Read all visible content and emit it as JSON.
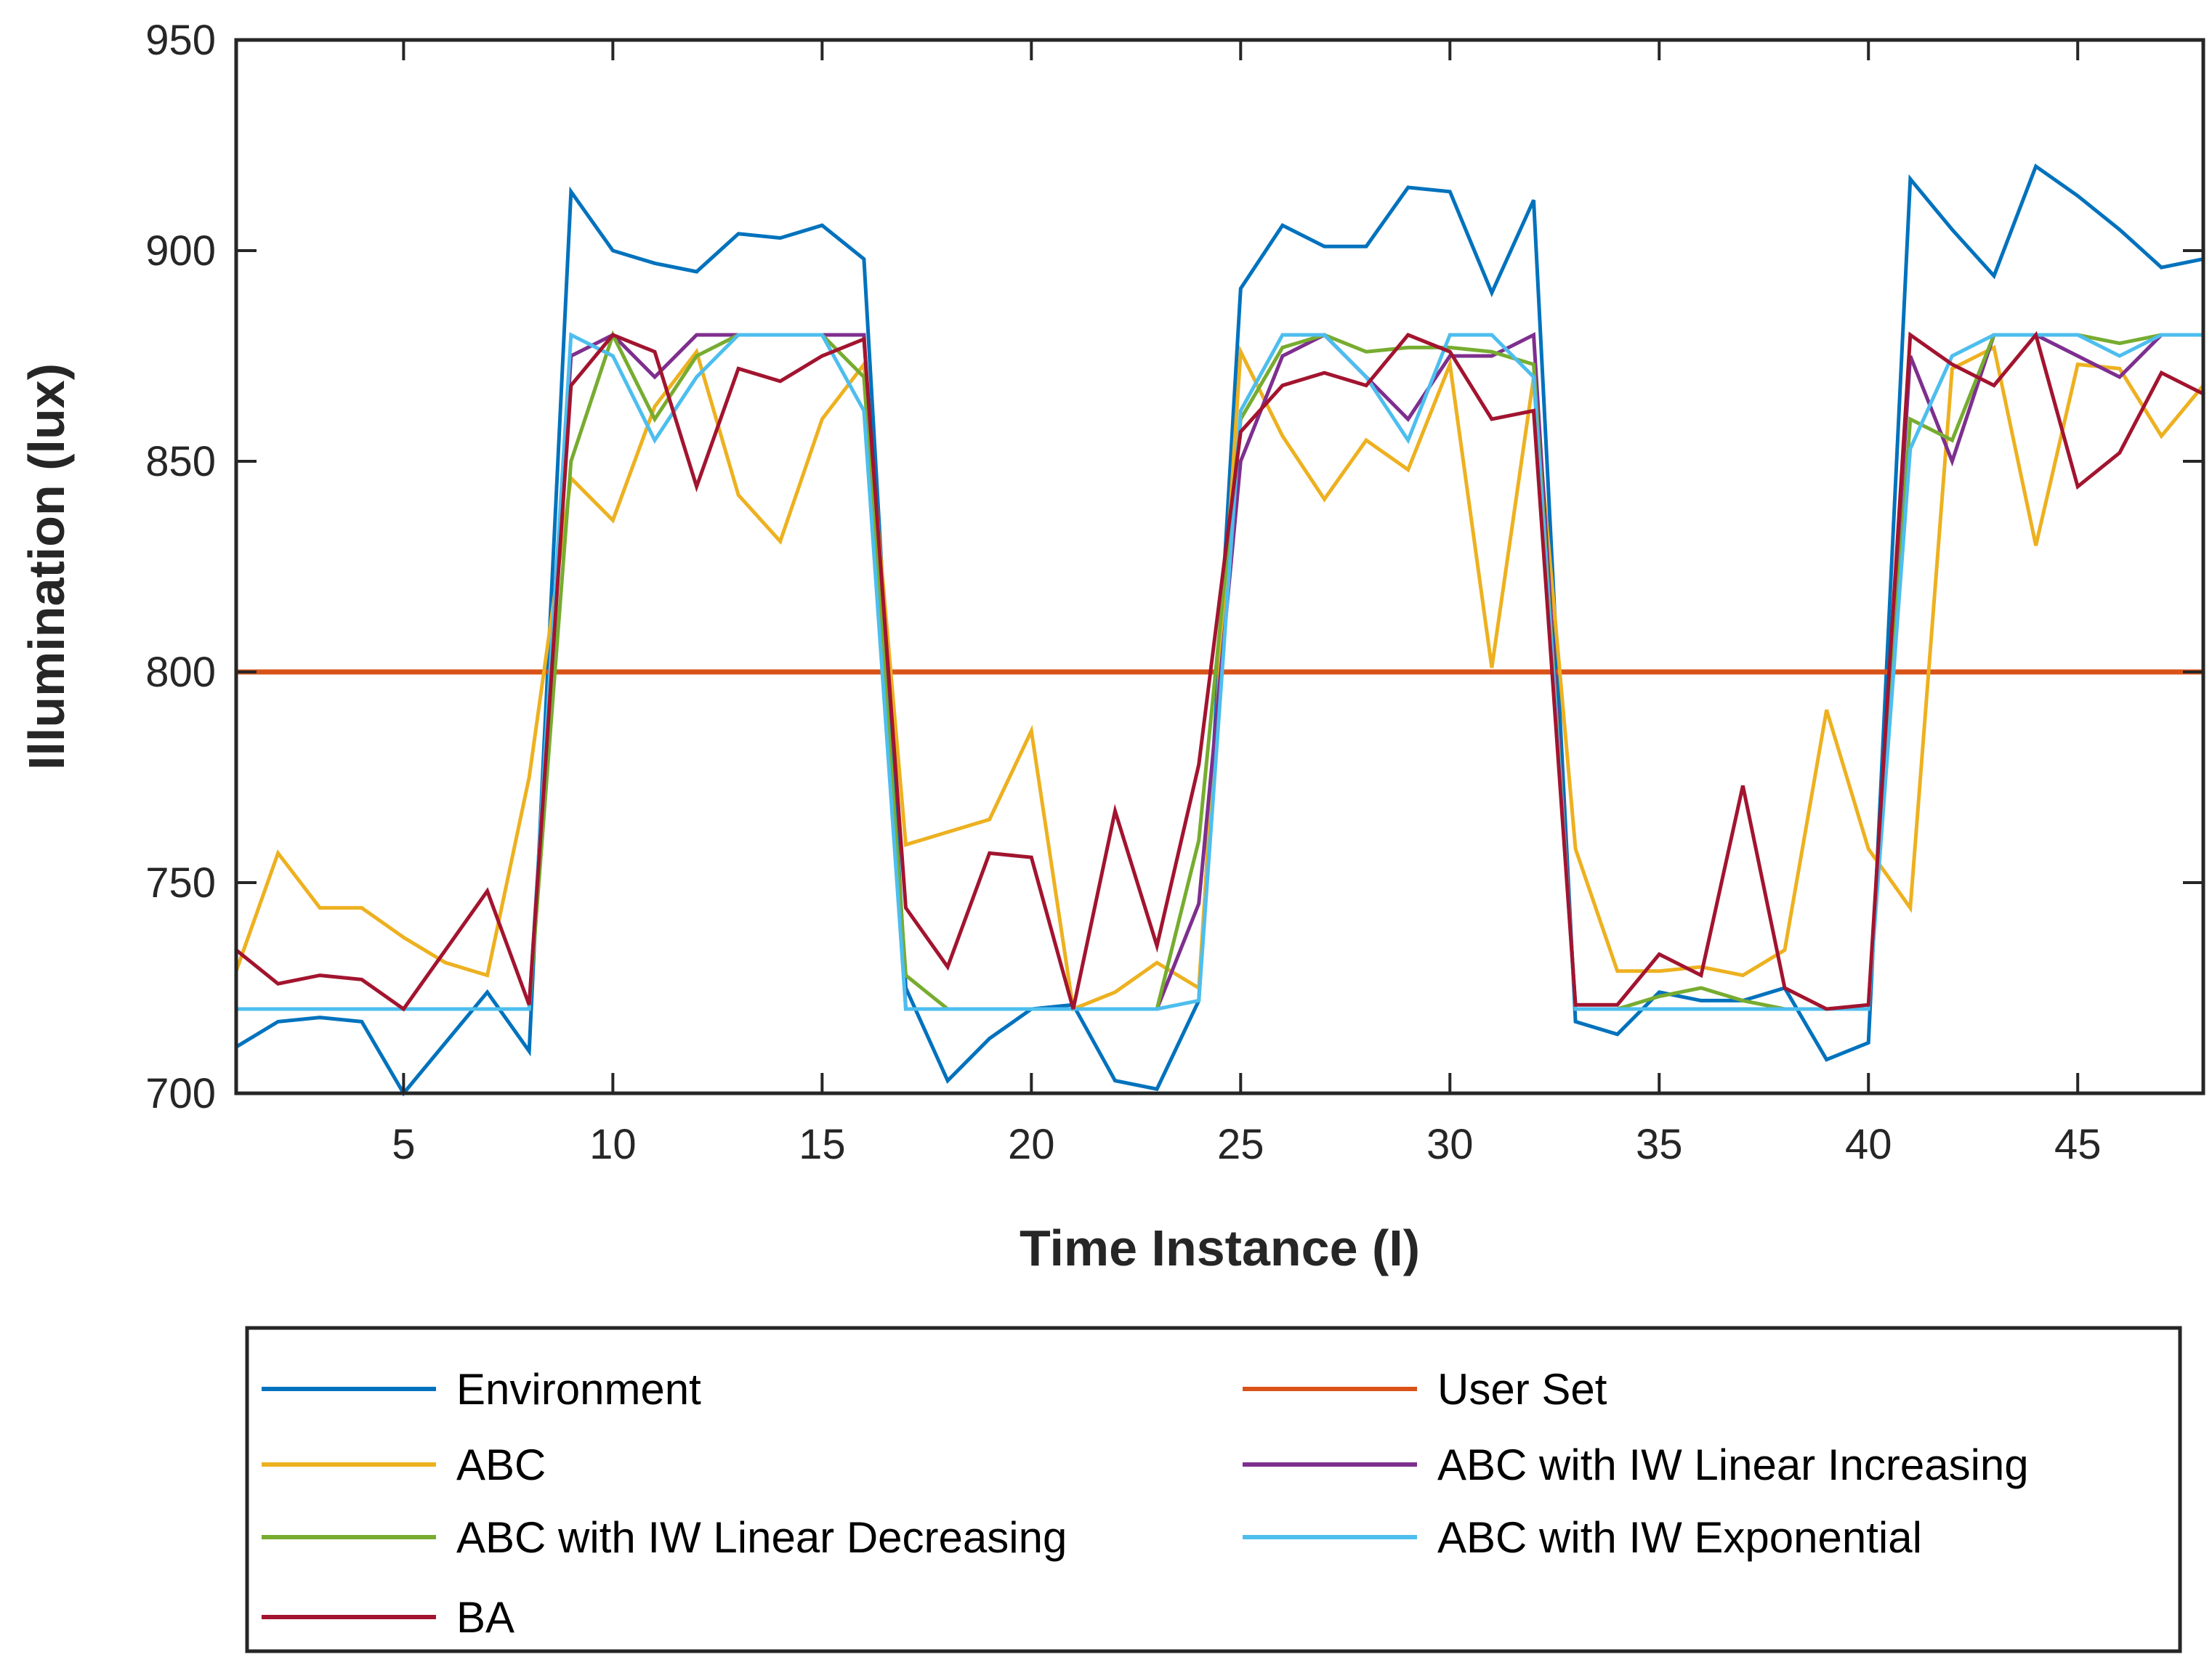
{
  "chart_data": {
    "type": "line",
    "title": "",
    "xlabel": "Time Instance (I)",
    "ylabel": "Illumination (lux)",
    "xlim": [
      1,
      48
    ],
    "ylim": [
      700,
      950
    ],
    "xticks": [
      5,
      10,
      15,
      20,
      25,
      30,
      35,
      40,
      45
    ],
    "yticks": [
      700,
      750,
      800,
      850,
      900,
      950
    ],
    "grid": false,
    "legend_position": "bottom",
    "x": [
      1,
      2,
      3,
      4,
      5,
      6,
      7,
      8,
      9,
      10,
      11,
      12,
      13,
      14,
      15,
      16,
      17,
      18,
      19,
      20,
      21,
      22,
      23,
      24,
      25,
      26,
      27,
      28,
      29,
      30,
      31,
      32,
      33,
      34,
      35,
      36,
      37,
      38,
      39,
      40,
      41,
      42,
      43,
      44,
      45,
      46,
      47,
      48
    ],
    "series": [
      {
        "name": "Environment",
        "color": "#0072BD",
        "values": [
          711,
          717,
          718,
          717,
          700,
          712,
          724,
          710,
          914,
          900,
          897,
          895,
          904,
          903,
          906,
          898,
          725,
          703,
          713,
          720,
          721,
          703,
          701,
          722,
          891,
          906,
          901,
          901,
          915,
          914,
          890,
          912,
          717,
          714,
          724,
          722,
          722,
          725,
          708,
          712,
          917,
          905,
          894,
          920,
          913,
          905,
          896,
          898
        ]
      },
      {
        "name": "User Set",
        "color": "#D95319",
        "values": [
          800,
          800,
          800,
          800,
          800,
          800,
          800,
          800,
          800,
          800,
          800,
          800,
          800,
          800,
          800,
          800,
          800,
          800,
          800,
          800,
          800,
          800,
          800,
          800,
          800,
          800,
          800,
          800,
          800,
          800,
          800,
          800,
          800,
          800,
          800,
          800,
          800,
          800,
          800,
          800,
          800,
          800,
          800,
          800,
          800,
          800,
          800,
          800
        ]
      },
      {
        "name": "ABC",
        "color": "#EDB120",
        "values": [
          729,
          757,
          744,
          744,
          737,
          731,
          728,
          775,
          846,
          836,
          863,
          876,
          842,
          831,
          860,
          873,
          759,
          762,
          765,
          786,
          720,
          724,
          731,
          725,
          876,
          856,
          841,
          855,
          848,
          873,
          801,
          870,
          758,
          729,
          729,
          730,
          728,
          734,
          791,
          758,
          744,
          872,
          877,
          830,
          873,
          872,
          856,
          868
        ]
      },
      {
        "name": "ABC with IW Linear Increasing",
        "color": "#7E2F8E",
        "values": [
          720,
          720,
          720,
          720,
          720,
          720,
          720,
          720,
          875,
          880,
          870,
          880,
          880,
          880,
          880,
          880,
          720,
          720,
          720,
          720,
          720,
          720,
          720,
          745,
          850,
          875,
          880,
          870,
          860,
          875,
          875,
          880,
          720,
          720,
          720,
          720,
          720,
          720,
          720,
          720,
          875,
          850,
          880,
          880,
          875,
          870,
          880,
          880
        ]
      },
      {
        "name": "ABC with IW Linear Decreasing",
        "color": "#77AC30",
        "values": [
          720,
          720,
          720,
          720,
          720,
          720,
          720,
          720,
          850,
          880,
          860,
          875,
          880,
          880,
          880,
          870,
          728,
          720,
          720,
          720,
          720,
          720,
          720,
          760,
          860,
          877,
          880,
          876,
          877,
          877,
          876,
          873,
          720,
          720,
          723,
          725,
          722,
          720,
          720,
          720,
          860,
          855,
          880,
          880,
          880,
          878,
          880,
          880
        ]
      },
      {
        "name": "ABC with IW Exponential",
        "color": "#4DBEEE",
        "values": [
          720,
          720,
          720,
          720,
          720,
          720,
          720,
          720,
          880,
          875,
          855,
          870,
          880,
          880,
          880,
          862,
          720,
          720,
          720,
          720,
          720,
          720,
          720,
          722,
          862,
          880,
          880,
          870,
          855,
          880,
          880,
          870,
          720,
          720,
          720,
          720,
          720,
          720,
          720,
          720,
          853,
          875,
          880,
          880,
          880,
          875,
          880,
          880
        ]
      },
      {
        "name": "BA",
        "color": "#A2142F",
        "values": [
          734,
          726,
          728,
          727,
          720,
          734,
          748,
          721,
          868,
          880,
          876,
          844,
          872,
          869,
          875,
          879,
          744,
          730,
          757,
          756,
          720,
          767,
          735,
          778,
          857,
          868,
          871,
          868,
          880,
          876,
          860,
          862,
          721,
          721,
          733,
          728,
          773,
          725,
          720,
          721,
          880,
          873,
          868,
          880,
          844,
          852,
          871,
          866
        ]
      }
    ],
    "legend": [
      "Environment",
      "User Set",
      "ABC",
      "ABC with IW Linear Increasing",
      "ABC with IW Linear Decreasing",
      "ABC with IW Exponential",
      "BA"
    ]
  }
}
